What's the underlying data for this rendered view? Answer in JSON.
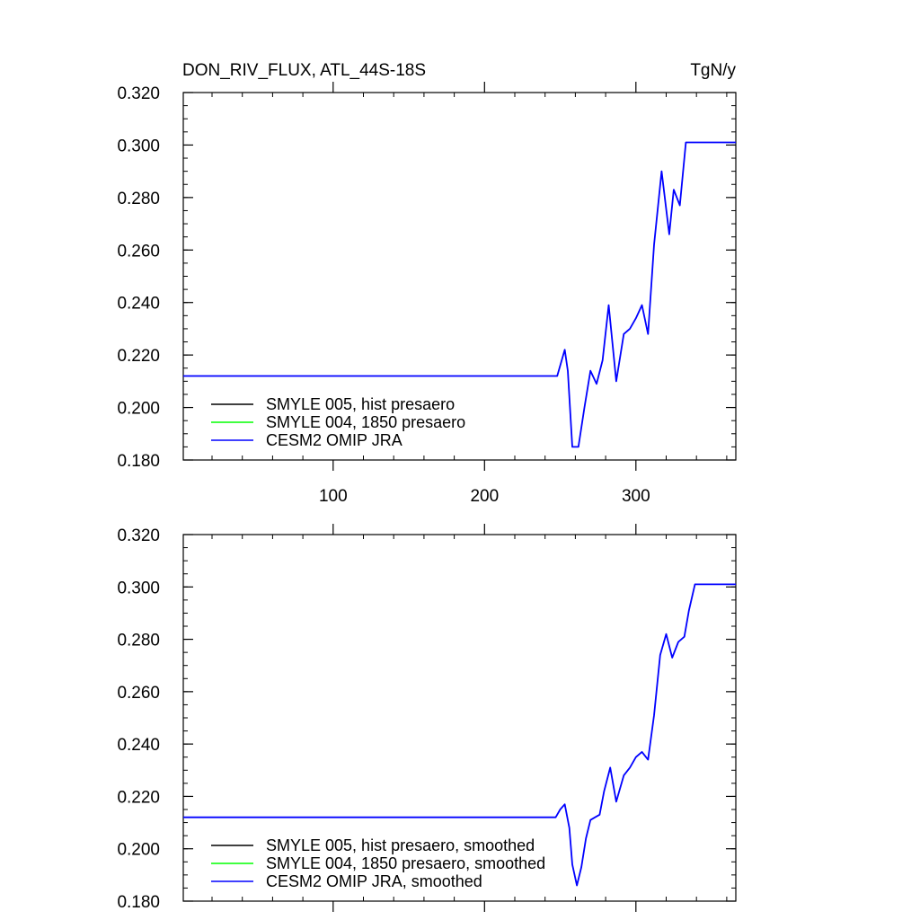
{
  "header": {
    "title": "DON_RIV_FLUX, ATL_44S-18S",
    "units": "TgN/y"
  },
  "colors": {
    "smyle005": "#000000",
    "smyle004": "#00ff00",
    "omip": "#0000ff"
  },
  "chart_data": [
    {
      "type": "line",
      "title": "DON_RIV_FLUX, ATL_44S-18S",
      "units": "TgN/y",
      "xlim": [
        1,
        366
      ],
      "ylim": [
        0.18,
        0.32
      ],
      "x_ticks": [
        100,
        200,
        300
      ],
      "x_tick_labels": [
        "100",
        "200",
        "300"
      ],
      "y_ticks": [
        0.18,
        0.2,
        0.22,
        0.24,
        0.26,
        0.28,
        0.3,
        0.32
      ],
      "y_tick_labels": [
        "0.180",
        "0.200",
        "0.220",
        "0.240",
        "0.260",
        "0.280",
        "0.300",
        "0.320"
      ],
      "legend_position": "bottom-left",
      "legend": [
        "SMYLE 005, hist presaero",
        "SMYLE 004, 1850 presaero",
        "CESM2 OMIP JRA"
      ],
      "series": [
        {
          "name": "SMYLE 005, hist presaero",
          "color": "#000000",
          "x": [],
          "y": []
        },
        {
          "name": "SMYLE 004, 1850 presaero",
          "color": "#00ff00",
          "x": [],
          "y": []
        },
        {
          "name": "CESM2 OMIP JRA",
          "color": "#0000ff",
          "x": [
            1,
            248,
            253,
            255,
            258,
            262,
            266,
            270,
            274,
            278,
            282,
            287,
            292,
            296,
            300,
            304,
            308,
            312,
            317,
            322,
            325,
            329,
            333,
            337,
            341,
            345,
            350,
            366
          ],
          "y": [
            0.212,
            0.212,
            0.222,
            0.214,
            0.185,
            0.185,
            0.2,
            0.214,
            0.209,
            0.218,
            0.239,
            0.21,
            0.228,
            0.23,
            0.234,
            0.239,
            0.228,
            0.262,
            0.29,
            0.266,
            0.283,
            0.277,
            0.301,
            0.301,
            0.301,
            0.301,
            0.301,
            0.301
          ]
        }
      ]
    },
    {
      "type": "line",
      "xlim": [
        1,
        366
      ],
      "ylim": [
        0.18,
        0.32
      ],
      "x_ticks": [
        100,
        200,
        300
      ],
      "x_tick_labels": [],
      "y_ticks": [
        0.18,
        0.2,
        0.22,
        0.24,
        0.26,
        0.28,
        0.3,
        0.32
      ],
      "y_tick_labels": [
        "0.180",
        "0.200",
        "0.220",
        "0.240",
        "0.260",
        "0.280",
        "0.300",
        "0.320"
      ],
      "legend_position": "bottom-left",
      "legend": [
        "SMYLE 005, hist presaero, smoothed",
        "SMYLE 004, 1850 presaero, smoothed",
        "CESM2 OMIP JRA, smoothed"
      ],
      "series": [
        {
          "name": "SMYLE 005, hist presaero, smoothed",
          "color": "#000000",
          "x": [],
          "y": []
        },
        {
          "name": "SMYLE 004, 1850 presaero, smoothed",
          "color": "#00ff00",
          "x": [],
          "y": []
        },
        {
          "name": "CESM2 OMIP JRA, smoothed",
          "color": "#0000ff",
          "x": [
            1,
            247,
            250,
            253,
            256,
            258,
            261,
            264,
            267,
            270,
            273,
            276,
            279,
            283,
            287,
            292,
            296,
            300,
            304,
            308,
            312,
            316,
            320,
            324,
            328,
            332,
            335,
            339,
            343,
            347,
            351,
            366
          ],
          "y": [
            0.212,
            0.212,
            0.215,
            0.217,
            0.208,
            0.194,
            0.186,
            0.193,
            0.204,
            0.211,
            0.212,
            0.213,
            0.222,
            0.231,
            0.218,
            0.228,
            0.231,
            0.235,
            0.237,
            0.234,
            0.251,
            0.274,
            0.282,
            0.273,
            0.279,
            0.281,
            0.291,
            0.301,
            0.301,
            0.301,
            0.301,
            0.301
          ]
        }
      ]
    }
  ]
}
